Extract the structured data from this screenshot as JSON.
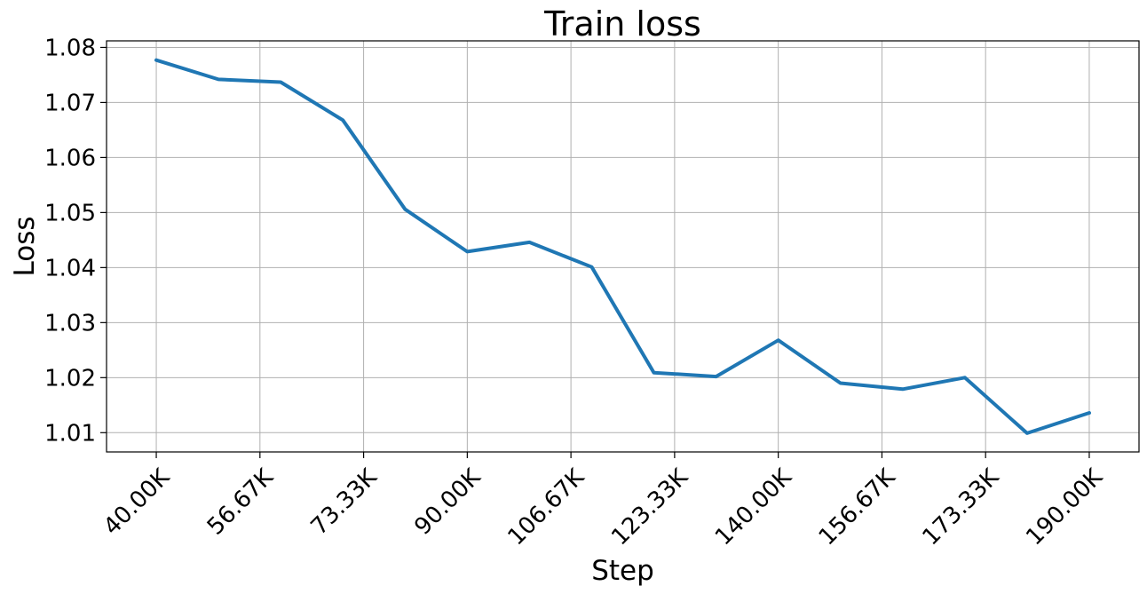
{
  "chart_data": {
    "type": "line",
    "title": "Train loss",
    "xlabel": "Step",
    "ylabel": "Loss",
    "x": [
      40000,
      50000,
      60000,
      70000,
      80000,
      90000,
      100000,
      110000,
      120000,
      130000,
      140000,
      150000,
      160000,
      170000,
      180000,
      190000
    ],
    "series": [
      {
        "values": [
          1.0777,
          1.0742,
          1.0737,
          1.0668,
          1.0506,
          1.0429,
          1.0446,
          1.0401,
          1.0209,
          1.0202,
          1.0268,
          1.019,
          1.0179,
          1.02,
          1.0099,
          1.0136
        ],
        "color": "#1f77b4"
      }
    ],
    "xticks": [
      40000,
      56666.67,
      73333.33,
      90000,
      106666.67,
      123333.33,
      140000,
      156666.67,
      173333.33,
      190000
    ],
    "xtick_labels": [
      "40.00K",
      "56.67K",
      "73.33K",
      "90.00K",
      "106.67K",
      "123.33K",
      "140.00K",
      "156.67K",
      "173.33K",
      "190.00K"
    ],
    "yticks": [
      1.01,
      1.02,
      1.03,
      1.04,
      1.05,
      1.06,
      1.07,
      1.08
    ],
    "ytick_labels": [
      "1.01",
      "1.02",
      "1.03",
      "1.04",
      "1.05",
      "1.06",
      "1.07",
      "1.08"
    ],
    "xlim": [
      32000,
      198000
    ],
    "ylim": [
      1.0065,
      1.0812
    ],
    "grid": true,
    "legend": "none"
  }
}
